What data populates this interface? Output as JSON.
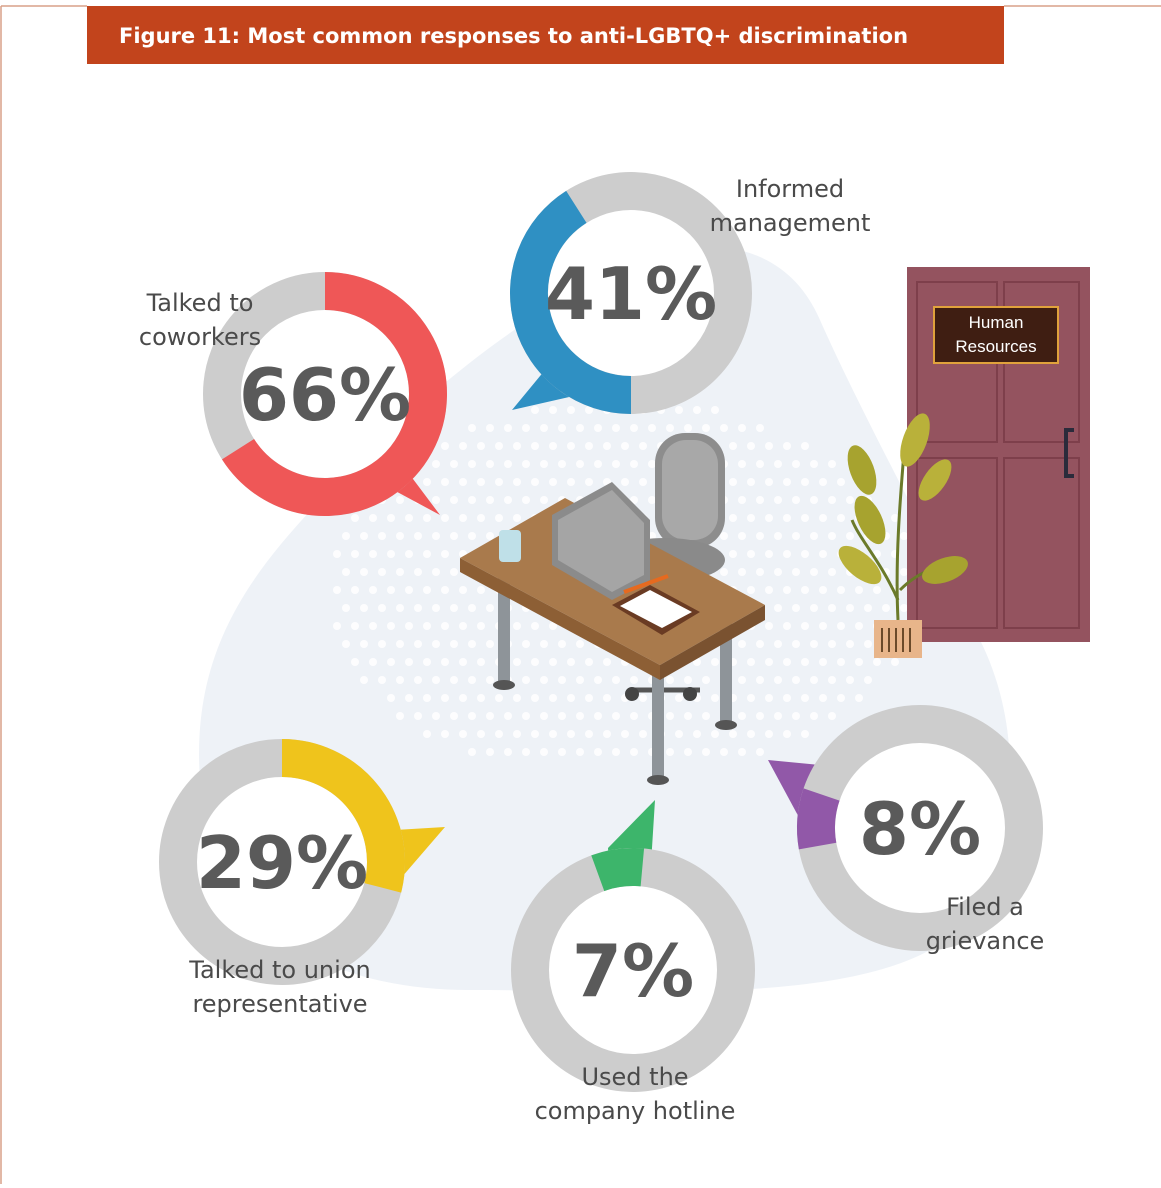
{
  "title": "Figure 11: Most common responses to anti-LGBTQ+ discrimination",
  "door_sign": {
    "line1": "Human",
    "line2": "Resources"
  },
  "colors": {
    "title_bar": "#c2441c",
    "track": "#cdcdcd",
    "coworkers": "#ef5757",
    "management": "#2f90c3",
    "union": "#efc41c",
    "hotline": "#3db56b",
    "grievance": "#9158a8"
  },
  "chart_data": {
    "type": "donut",
    "title": "Figure 11: Most common responses to anti-LGBTQ+ discrimination",
    "unit": "%",
    "categories": [
      "Talked to coworkers",
      "Informed management",
      "Talked to union representative",
      "Used the company hotline",
      "Filed a grievance"
    ],
    "values": [
      66,
      41,
      29,
      7,
      8
    ],
    "items": [
      {
        "key": "coworkers",
        "label_lines": [
          "Talked to",
          "coworkers"
        ],
        "value": 66,
        "display": "66%"
      },
      {
        "key": "management",
        "label_lines": [
          "Informed",
          "management"
        ],
        "value": 41,
        "display": "41%"
      },
      {
        "key": "union",
        "label_lines": [
          "Talked to union",
          "representative"
        ],
        "value": 29,
        "display": "29%"
      },
      {
        "key": "hotline",
        "label_lines": [
          "Used the",
          "company hotline"
        ],
        "value": 7,
        "display": "7%"
      },
      {
        "key": "grievance",
        "label_lines": [
          "Filed a",
          "grievance"
        ],
        "value": 8,
        "display": "8%"
      }
    ]
  }
}
